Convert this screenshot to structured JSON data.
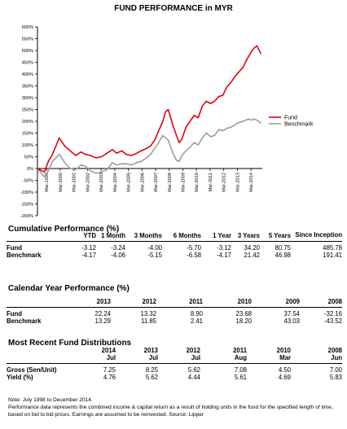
{
  "chart_data": {
    "type": "line",
    "title": "FUND PERFORMANCE in MYR",
    "ylim": [
      -200,
      600
    ],
    "yticks": [
      "-200%",
      "-150%",
      "-100%",
      "-50%",
      "0%",
      "50%",
      "100%",
      "150%",
      "200%",
      "250%",
      "300%",
      "350%",
      "400%",
      "450%",
      "500%",
      "550%",
      "600%"
    ],
    "xticks": [
      "Mar-1999",
      "Mar-2000",
      "Mar-2001",
      "Mar-2002",
      "Mar-2003",
      "Mar-2004",
      "Mar-2005",
      "Mar-2006",
      "Mar-2007",
      "Mar-2008",
      "Mar-2009",
      "Mar-2010",
      "Mar-2011",
      "Mar-2012",
      "Mar-2013",
      "Mar-2014"
    ],
    "legend_position": "right",
    "series": [
      {
        "name": "Fund",
        "color": "#e3000f",
        "x": [
          1998.5,
          1999.0,
          1999.3,
          1999.6,
          2000.1,
          2000.5,
          2000.9,
          2001.3,
          2001.7,
          2002.0,
          2002.4,
          2002.8,
          2003.2,
          2003.6,
          2004.0,
          2004.3,
          2004.7,
          2005.0,
          2005.4,
          2005.8,
          2006.1,
          2006.5,
          2006.8,
          2007.1,
          2007.4,
          2007.7,
          2007.9,
          2008.1,
          2008.4,
          2008.7,
          2008.9,
          2009.1,
          2009.4,
          2009.7,
          2010.0,
          2010.3,
          2010.6,
          2010.9,
          2011.2,
          2011.5,
          2011.8,
          2012.1,
          2012.4,
          2012.7,
          2013.0,
          2013.3,
          2013.6,
          2013.8,
          2014.0,
          2014.2,
          2014.4,
          2014.6,
          2014.9
        ],
        "y": [
          0,
          -15,
          30,
          60,
          130,
          95,
          75,
          55,
          70,
          60,
          55,
          45,
          50,
          65,
          80,
          65,
          75,
          60,
          55,
          65,
          75,
          85,
          95,
          120,
          160,
          200,
          240,
          250,
          190,
          140,
          110,
          125,
          175,
          200,
          225,
          215,
          265,
          285,
          275,
          285,
          305,
          310,
          345,
          365,
          390,
          410,
          430,
          455,
          475,
          495,
          510,
          520,
          486
        ]
      },
      {
        "name": "Benchmark",
        "color": "#9d9d9d",
        "x": [
          1998.5,
          1999.0,
          1999.3,
          1999.6,
          2000.1,
          2000.5,
          2000.9,
          2001.3,
          2001.7,
          2002.0,
          2002.4,
          2002.8,
          2003.2,
          2003.6,
          2004.0,
          2004.3,
          2004.7,
          2005.0,
          2005.4,
          2005.8,
          2006.1,
          2006.5,
          2006.8,
          2007.1,
          2007.4,
          2007.7,
          2007.9,
          2008.1,
          2008.4,
          2008.7,
          2008.9,
          2009.1,
          2009.4,
          2009.7,
          2010.0,
          2010.3,
          2010.6,
          2010.9,
          2011.2,
          2011.5,
          2011.8,
          2012.1,
          2012.4,
          2012.7,
          2013.0,
          2013.3,
          2013.6,
          2013.8,
          2014.0,
          2014.2,
          2014.4,
          2014.6,
          2014.9
        ],
        "y": [
          0,
          -35,
          -10,
          30,
          60,
          25,
          0,
          -5,
          15,
          10,
          -10,
          -20,
          -15,
          -5,
          25,
          15,
          20,
          20,
          15,
          25,
          30,
          45,
          60,
          85,
          110,
          140,
          130,
          120,
          70,
          35,
          30,
          55,
          75,
          90,
          110,
          100,
          130,
          150,
          135,
          140,
          165,
          160,
          170,
          175,
          185,
          195,
          200,
          205,
          210,
          205,
          210,
          205,
          191
        ]
      }
    ]
  },
  "cumulative": {
    "title": "Cumulative Performance (%)",
    "headers": [
      "YTD",
      "1 Month",
      "3 Months",
      "6 Months",
      "1 Year",
      "3 Years",
      "5 Years",
      "Since Inception"
    ],
    "rows": [
      {
        "label": "Fund",
        "values": [
          "-3.12",
          "-3.24",
          "-4.00",
          "-5.70",
          "-3.12",
          "34.20",
          "80.75",
          "485.78"
        ]
      },
      {
        "label": "Benchmark",
        "values": [
          "-4.17",
          "-4.06",
          "-5.15",
          "-6.58",
          "-4.17",
          "21.42",
          "46.98",
          "191.41"
        ]
      }
    ]
  },
  "calendar": {
    "title": "Calendar Year Performance (%)",
    "headers": [
      "2013",
      "2012",
      "2011",
      "2010",
      "2009",
      "2008"
    ],
    "rows": [
      {
        "label": "Fund",
        "values": [
          "22.24",
          "13.32",
          "8.90",
          "23.68",
          "37.54",
          "-32.16"
        ]
      },
      {
        "label": "Benchmark",
        "values": [
          "13.29",
          "11.85",
          "2.41",
          "18.20",
          "43.03",
          "-43.52"
        ]
      }
    ]
  },
  "distributions": {
    "title": "Most Recent Fund Distributions",
    "years": [
      "2014",
      "2013",
      "2012",
      "2011",
      "2010",
      "2008"
    ],
    "months": [
      "Jul",
      "Jul",
      "Jul",
      "Aug",
      "Mar",
      "Jun"
    ],
    "rows": [
      {
        "label": "Gross (Sen/Unit)",
        "values": [
          "7.25",
          "8.25",
          "5.62",
          "7.08",
          "4.50",
          "7.00"
        ]
      },
      {
        "label": "Yield (%)",
        "values": [
          "4.76",
          "5.62",
          "4.44",
          "5.61",
          "4.69",
          "5.83"
        ]
      }
    ]
  },
  "notes": {
    "line1": "Note: July 1998 to December 2014.",
    "line2": "Performance data represents the combined income & capital return as a result of holding units in the fund for the specified length of time, based on bid to bid prices. Earnings are assumed to be reinvested. Source: Lipper"
  }
}
